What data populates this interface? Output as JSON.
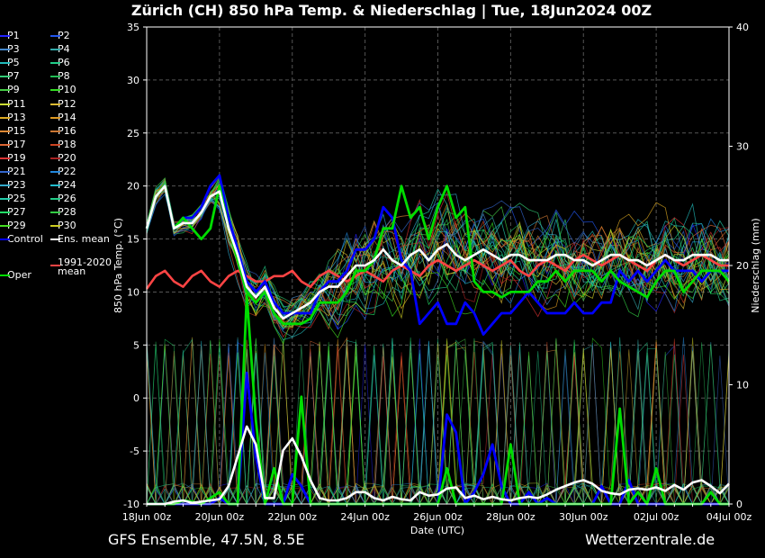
{
  "header": {
    "title": "Zürich  (CH)  850 hPa Temp. & Niederschlag | Tue, 18Jun2024 00Z"
  },
  "footer": {
    "left": "GFS Ensemble, 47.5N, 8.5E",
    "right": "Wetterzentrale.de"
  },
  "legend": {
    "items": [
      {
        "label": "P1",
        "color": "#2222ff"
      },
      {
        "label": "P2",
        "color": "#2255ee"
      },
      {
        "label": "P3",
        "color": "#4488cc"
      },
      {
        "label": "P4",
        "color": "#33aaaa"
      },
      {
        "label": "P5",
        "color": "#22bbbb"
      },
      {
        "label": "P6",
        "color": "#22cc88"
      },
      {
        "label": "P7",
        "color": "#33cc77"
      },
      {
        "label": "P8",
        "color": "#22bb55"
      },
      {
        "label": "P9",
        "color": "#44cc44"
      },
      {
        "label": "P10",
        "color": "#33dd22"
      },
      {
        "label": "P11",
        "color": "#ccdd33"
      },
      {
        "label": "P12",
        "color": "#ddbb33"
      },
      {
        "label": "P13",
        "color": "#ddaa22"
      },
      {
        "label": "P14",
        "color": "#dd9922"
      },
      {
        "label": "P15",
        "color": "#dd8833"
      },
      {
        "label": "P16",
        "color": "#cc7733"
      },
      {
        "label": "P17",
        "color": "#dd6633"
      },
      {
        "label": "P18",
        "color": "#cc4422"
      },
      {
        "label": "P19",
        "color": "#dd3333"
      },
      {
        "label": "P20",
        "color": "#aa2222"
      },
      {
        "label": "P21",
        "color": "#3366cc"
      },
      {
        "label": "P22",
        "color": "#2288dd"
      },
      {
        "label": "P23",
        "color": "#33aacc"
      },
      {
        "label": "P24",
        "color": "#22bbcc"
      },
      {
        "label": "P25",
        "color": "#22ccaa"
      },
      {
        "label": "P26",
        "color": "#22cc88"
      },
      {
        "label": "P27",
        "color": "#22dd66"
      },
      {
        "label": "P28",
        "color": "#33cc44"
      },
      {
        "label": "P29",
        "color": "#44dd22"
      },
      {
        "label": "P30",
        "color": "#cccc22"
      },
      {
        "label": "Control",
        "color": "#0000ff"
      },
      {
        "label": "Ens. mean",
        "color": "#ffffff"
      },
      {
        "label": "Oper",
        "color": "#00dd00"
      },
      {
        "label": "1991-2020\nmean",
        "color": "#ff4444"
      }
    ]
  },
  "chart_data": {
    "type": "line",
    "title": "Zürich  (CH)  850 hPa Temp. & Niederschlag | Tue, 18Jun2024 00Z",
    "xlabel": "Date (UTC)",
    "ylabel": "850 hPa Temp. (°C)",
    "y2label": "Niederschlag (mm)",
    "x_ticks": [
      "18Jun 00z",
      "20Jun 00z",
      "22Jun 00z",
      "24Jun 00z",
      "26Jun 00z",
      "28Jun 00z",
      "30Jun 00z",
      "02Jul 00z",
      "04Jul 00z"
    ],
    "ylim": [
      -10,
      35
    ],
    "y_ticks": [
      -10,
      -5,
      0,
      5,
      10,
      15,
      20,
      25,
      30,
      35
    ],
    "y2lim": [
      0,
      40
    ],
    "y2_ticks": [
      0,
      10,
      20,
      30,
      40
    ],
    "grid": true,
    "x_hours": [
      0,
      6,
      12,
      18,
      24,
      30,
      36,
      42,
      48,
      54,
      60,
      66,
      72,
      78,
      84,
      90,
      96,
      102,
      108,
      114,
      120,
      126,
      132,
      138,
      144,
      150,
      156,
      162,
      168,
      174,
      180,
      186,
      192,
      198,
      204,
      210,
      216,
      222,
      228,
      234,
      240,
      246,
      252,
      258,
      264,
      270,
      276,
      282,
      288,
      294,
      300,
      306,
      312,
      318,
      324,
      330,
      336,
      342,
      348,
      354,
      360,
      366,
      372,
      378,
      384
    ],
    "series": [
      {
        "name": "Control",
        "axis": "temp",
        "color": "#0000ff",
        "values": [
          16,
          19,
          20,
          16,
          17,
          17,
          18,
          20,
          21,
          17,
          14,
          11,
          10,
          11,
          9,
          8,
          8,
          8,
          8,
          10,
          11,
          11,
          12,
          14,
          14,
          15,
          18,
          17,
          13,
          12,
          7,
          8,
          9,
          7,
          7,
          9,
          8,
          6,
          7,
          8,
          8,
          9,
          10,
          9,
          8,
          8,
          8,
          9,
          8,
          8,
          9,
          9,
          12,
          11,
          12,
          11,
          12,
          13,
          12,
          12,
          12,
          11,
          12,
          12,
          12
        ]
      },
      {
        "name": "Ens. mean",
        "axis": "temp",
        "color": "#ffffff",
        "values": [
          16,
          19,
          20,
          16,
          16.5,
          16.5,
          17.5,
          19,
          19.5,
          16,
          13.5,
          10.5,
          9.5,
          10.5,
          8.5,
          7.5,
          8,
          8.5,
          9,
          10,
          10.5,
          10.5,
          11.5,
          12.5,
          12.5,
          13,
          14,
          13,
          12.5,
          13.5,
          14,
          13,
          14,
          14.5,
          13.5,
          13,
          13.5,
          14,
          13.5,
          13,
          13.5,
          13.5,
          13,
          13,
          13,
          13.5,
          13.5,
          13,
          13,
          12.5,
          13,
          13.5,
          13.5,
          13,
          13,
          12.5,
          13,
          13.5,
          13,
          13,
          13.5,
          13.5,
          13.5,
          13,
          13
        ]
      },
      {
        "name": "Oper",
        "axis": "temp",
        "color": "#00dd00",
        "values": [
          16,
          19,
          20,
          16,
          17,
          16,
          15,
          16,
          20,
          16,
          13,
          10,
          9,
          10,
          8,
          7,
          7,
          7,
          7.5,
          9,
          9,
          9,
          10,
          12,
          12,
          13,
          16,
          16,
          20,
          17,
          18,
          15,
          18,
          20,
          17,
          18,
          11,
          10,
          10,
          9.5,
          10,
          10,
          10,
          11,
          11,
          12,
          11,
          12,
          12,
          12,
          11,
          12,
          11,
          10.5,
          10,
          9.5,
          11,
          12,
          12,
          10,
          11,
          12,
          12,
          12,
          11
        ]
      },
      {
        "name": "1991-2020 mean",
        "axis": "temp",
        "color": "#ff4444",
        "values": [
          10.3,
          11.5,
          12,
          11,
          10.5,
          11.5,
          12,
          11,
          10.5,
          11.5,
          12,
          11.5,
          11,
          11,
          11.5,
          11.5,
          12,
          11,
          10.5,
          11.5,
          12,
          11.5,
          11,
          11.5,
          12,
          11.5,
          11,
          12,
          12.5,
          12,
          11.5,
          12.5,
          13,
          12.5,
          12,
          12.5,
          13,
          12.5,
          12,
          12.5,
          13,
          12,
          11.5,
          12.5,
          13,
          12.5,
          12,
          13,
          13.5,
          13,
          12.5,
          13,
          13.5,
          13,
          12.5,
          12,
          13,
          13.5,
          13,
          12.5,
          13,
          13.5,
          13,
          12.5,
          12.5
        ]
      },
      {
        "name": "Ens. mean precip",
        "axis": "precip",
        "color": "#ffffff",
        "values": [
          0,
          0,
          0,
          0.2,
          0.3,
          0.1,
          0.2,
          0.3,
          0.4,
          1.5,
          4,
          6.5,
          5,
          0.5,
          0.5,
          4.5,
          5.5,
          4,
          2,
          0.5,
          0.3,
          0.3,
          0.5,
          1,
          1,
          0.5,
          0.3,
          0.6,
          0.4,
          0.3,
          1,
          0.7,
          0.8,
          1.3,
          1.4,
          0.5,
          0.7,
          0.4,
          0.6,
          0.4,
          0.3,
          0.5,
          0.6,
          0.5,
          0.8,
          1.2,
          1.5,
          1.8,
          2,
          1.7,
          1.1,
          0.9,
          0.8,
          1.2,
          1.3,
          1.2,
          1.4,
          1.1,
          1.6,
          1.2,
          1.8,
          2,
          1.5,
          0.9,
          1.7
        ]
      },
      {
        "name": "Oper precip",
        "axis": "precip",
        "color": "#00dd00",
        "values": [
          0,
          0,
          0,
          0,
          0.3,
          0.2,
          0,
          0.5,
          1,
          0,
          0,
          17.5,
          7,
          0,
          3,
          0,
          0,
          9,
          0,
          0,
          0,
          0,
          0,
          0,
          0,
          0,
          0,
          0,
          0,
          0,
          0,
          0,
          0,
          3,
          0,
          0,
          0,
          0,
          0,
          0,
          5,
          0,
          0,
          0,
          0,
          0,
          0,
          0,
          0,
          0,
          0,
          0,
          8,
          0,
          1,
          0,
          3,
          0,
          0,
          0,
          0,
          0,
          1,
          0,
          0
        ]
      },
      {
        "name": "Control precip",
        "axis": "precip",
        "color": "#0000ff",
        "values": [
          0,
          0,
          0,
          0,
          0,
          0,
          0,
          0,
          0.5,
          0,
          0,
          11,
          4,
          0,
          0,
          0,
          2.5,
          1.5,
          0,
          0,
          0,
          0,
          0,
          0,
          0,
          0,
          0,
          0,
          0,
          0,
          0,
          0,
          0,
          7.5,
          6,
          0,
          1,
          2.5,
          5,
          1.5,
          0,
          0,
          1,
          0,
          0.5,
          0,
          0,
          0,
          0,
          0,
          1.5,
          0,
          0,
          2,
          0,
          0,
          0,
          0,
          0,
          0,
          0,
          0,
          0,
          0,
          0
        ]
      }
    ]
  }
}
